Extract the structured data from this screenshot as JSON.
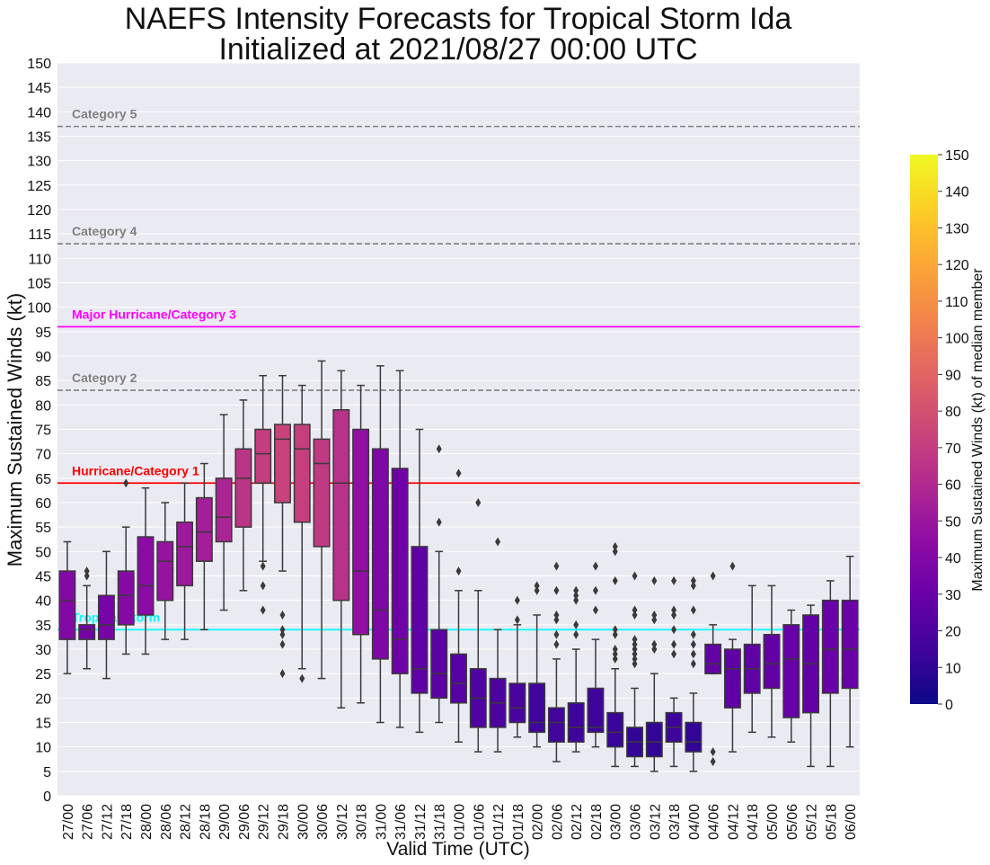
{
  "chart_data": {
    "type": "box",
    "title_line1": "NAEFS Intensity Forecasts for Tropical Storm Ida",
    "title_line2": "Initialized at 2021/08/27 00:00 UTC",
    "xlabel": "Valid Time (UTC)",
    "ylabel": "Maximum Sustained Winds (kt)",
    "ylim": [
      0,
      150
    ],
    "yticks": [
      0,
      5,
      10,
      15,
      20,
      25,
      30,
      35,
      40,
      45,
      50,
      55,
      60,
      65,
      70,
      75,
      80,
      85,
      90,
      95,
      100,
      105,
      110,
      115,
      120,
      125,
      130,
      135,
      140,
      145,
      150
    ],
    "grid": true,
    "colorbar": {
      "label": "Maximum Sustained Winds (kt) of median member",
      "range": [
        0,
        150
      ],
      "ticks": [
        0,
        10,
        20,
        30,
        40,
        50,
        60,
        70,
        80,
        90,
        100,
        110,
        120,
        130,
        140,
        150
      ],
      "colormap": "plasma"
    },
    "thresholds": [
      {
        "label": "Category 5",
        "value": 137,
        "style": "dashed",
        "color": "#808080"
      },
      {
        "label": "Category 4",
        "value": 113,
        "style": "dashed",
        "color": "#808080"
      },
      {
        "label": "Major Hurricane/Category 3",
        "value": 96,
        "style": "solid",
        "color": "#ff00ff"
      },
      {
        "label": "Category 2",
        "value": 83,
        "style": "dashed",
        "color": "#808080"
      },
      {
        "label": "Hurricane/Category 1",
        "value": 64,
        "style": "solid",
        "color": "#ff0000"
      },
      {
        "label": "Tropical Storm",
        "value": 34,
        "style": "solid",
        "color": "#00ffff"
      }
    ],
    "categories": [
      "27/00",
      "27/06",
      "27/12",
      "27/18",
      "28/00",
      "28/06",
      "28/12",
      "28/18",
      "29/00",
      "29/06",
      "29/12",
      "29/18",
      "30/00",
      "30/06",
      "30/12",
      "30/18",
      "31/00",
      "31/06",
      "31/12",
      "31/18",
      "01/00",
      "01/06",
      "01/12",
      "01/18",
      "02/00",
      "02/06",
      "02/12",
      "02/18",
      "03/00",
      "03/06",
      "03/12",
      "03/18",
      "04/00",
      "04/06",
      "04/12",
      "04/18",
      "05/00",
      "05/06",
      "05/12",
      "05/18",
      "06/00"
    ],
    "boxes": [
      {
        "min": 25,
        "q1": 32,
        "median": 40,
        "q3": 46,
        "max": 52,
        "outliers": []
      },
      {
        "min": 26,
        "q1": 32,
        "median": 34,
        "q3": 35,
        "max": 43,
        "outliers": [
          45,
          46
        ]
      },
      {
        "min": 24,
        "q1": 32,
        "median": 35,
        "q3": 41,
        "max": 50,
        "outliers": []
      },
      {
        "min": 29,
        "q1": 35,
        "median": 41,
        "q3": 46,
        "max": 55,
        "outliers": [
          64
        ]
      },
      {
        "min": 29,
        "q1": 37,
        "median": 43,
        "q3": 53,
        "max": 63,
        "outliers": []
      },
      {
        "min": 32,
        "q1": 40,
        "median": 48,
        "q3": 52,
        "max": 60,
        "outliers": []
      },
      {
        "min": 32,
        "q1": 43,
        "median": 51,
        "q3": 56,
        "max": 64,
        "outliers": []
      },
      {
        "min": 34,
        "q1": 48,
        "median": 54,
        "q3": 61,
        "max": 68,
        "outliers": []
      },
      {
        "min": 38,
        "q1": 52,
        "median": 57,
        "q3": 65,
        "max": 78,
        "outliers": []
      },
      {
        "min": 42,
        "q1": 55,
        "median": 65,
        "q3": 71,
        "max": 81,
        "outliers": []
      },
      {
        "min": 48,
        "q1": 64,
        "median": 70,
        "q3": 75,
        "max": 86,
        "outliers": [
          38,
          43,
          47
        ]
      },
      {
        "min": 46,
        "q1": 60,
        "median": 73,
        "q3": 76,
        "max": 86,
        "outliers": [
          25,
          31,
          33,
          34,
          37
        ]
      },
      {
        "min": 26,
        "q1": 56,
        "median": 71,
        "q3": 76,
        "max": 84,
        "outliers": [
          24
        ]
      },
      {
        "min": 24,
        "q1": 51,
        "median": 68,
        "q3": 73,
        "max": 89,
        "outliers": []
      },
      {
        "min": 18,
        "q1": 40,
        "median": 64,
        "q3": 79,
        "max": 87,
        "outliers": []
      },
      {
        "min": 19,
        "q1": 33,
        "median": 46,
        "q3": 75,
        "max": 84,
        "outliers": []
      },
      {
        "min": 15,
        "q1": 28,
        "median": 38,
        "q3": 71,
        "max": 88,
        "outliers": []
      },
      {
        "min": 14,
        "q1": 25,
        "median": 32,
        "q3": 67,
        "max": 87,
        "outliers": []
      },
      {
        "min": 13,
        "q1": 21,
        "median": 26,
        "q3": 51,
        "max": 75,
        "outliers": []
      },
      {
        "min": 15,
        "q1": 20,
        "median": 25,
        "q3": 34,
        "max": 50,
        "outliers": [
          56,
          71
        ]
      },
      {
        "min": 11,
        "q1": 19,
        "median": 23,
        "q3": 29,
        "max": 42,
        "outliers": [
          46,
          66
        ]
      },
      {
        "min": 9,
        "q1": 14,
        "median": 20,
        "q3": 26,
        "max": 42,
        "outliers": [
          60
        ]
      },
      {
        "min": 9,
        "q1": 14,
        "median": 19,
        "q3": 24,
        "max": 34,
        "outliers": [
          52
        ]
      },
      {
        "min": 12,
        "q1": 15,
        "median": 18,
        "q3": 23,
        "max": 35,
        "outliers": [
          36,
          40
        ]
      },
      {
        "min": 10,
        "q1": 13,
        "median": 15,
        "q3": 23,
        "max": 37,
        "outliers": [
          42,
          43
        ]
      },
      {
        "min": 7,
        "q1": 11,
        "median": 15,
        "q3": 18,
        "max": 28,
        "outliers": [
          31,
          33,
          36,
          37,
          42,
          47
        ]
      },
      {
        "min": 9,
        "q1": 11,
        "median": 14,
        "q3": 19,
        "max": 30,
        "outliers": [
          33,
          35,
          40,
          41,
          42
        ]
      },
      {
        "min": 10,
        "q1": 13,
        "median": 14,
        "q3": 22,
        "max": 32,
        "outliers": [
          38,
          42,
          47
        ]
      },
      {
        "min": 6,
        "q1": 10,
        "median": 13,
        "q3": 17,
        "max": 26,
        "outliers": [
          28,
          29,
          30,
          33,
          34,
          44,
          50,
          51
        ]
      },
      {
        "min": 6,
        "q1": 8,
        "median": 11,
        "q3": 14,
        "max": 22,
        "outliers": [
          27,
          28,
          29,
          30,
          31,
          32,
          37,
          38,
          45
        ]
      },
      {
        "min": 5,
        "q1": 8,
        "median": 11,
        "q3": 15,
        "max": 25,
        "outliers": [
          30,
          31,
          36,
          37,
          44
        ]
      },
      {
        "min": 6,
        "q1": 11,
        "median": 14,
        "q3": 17,
        "max": 20,
        "outliers": [
          29,
          31,
          34,
          37,
          38,
          44
        ]
      },
      {
        "min": 5,
        "q1": 9,
        "median": 11,
        "q3": 15,
        "max": 21,
        "outliers": [
          27,
          29,
          31,
          33,
          38,
          43,
          44
        ]
      },
      {
        "min": 25,
        "q1": 25,
        "median": 27,
        "q3": 31,
        "max": 35,
        "outliers": [
          7,
          9,
          45
        ]
      },
      {
        "min": 9,
        "q1": 18,
        "median": 26,
        "q3": 30,
        "max": 32,
        "outliers": [
          47
        ]
      },
      {
        "min": 13,
        "q1": 21,
        "median": 26,
        "q3": 31,
        "max": 43,
        "outliers": []
      },
      {
        "min": 12,
        "q1": 22,
        "median": 27,
        "q3": 33,
        "max": 43,
        "outliers": []
      },
      {
        "min": 11,
        "q1": 16,
        "median": 28,
        "q3": 35,
        "max": 38,
        "outliers": []
      },
      {
        "min": 6,
        "q1": 17,
        "median": 27,
        "q3": 37,
        "max": 39,
        "outliers": []
      },
      {
        "min": 6,
        "q1": 21,
        "median": 30,
        "q3": 40,
        "max": 44,
        "outliers": []
      },
      {
        "min": 10,
        "q1": 22,
        "median": 30,
        "q3": 40,
        "max": 49,
        "outliers": []
      }
    ]
  }
}
